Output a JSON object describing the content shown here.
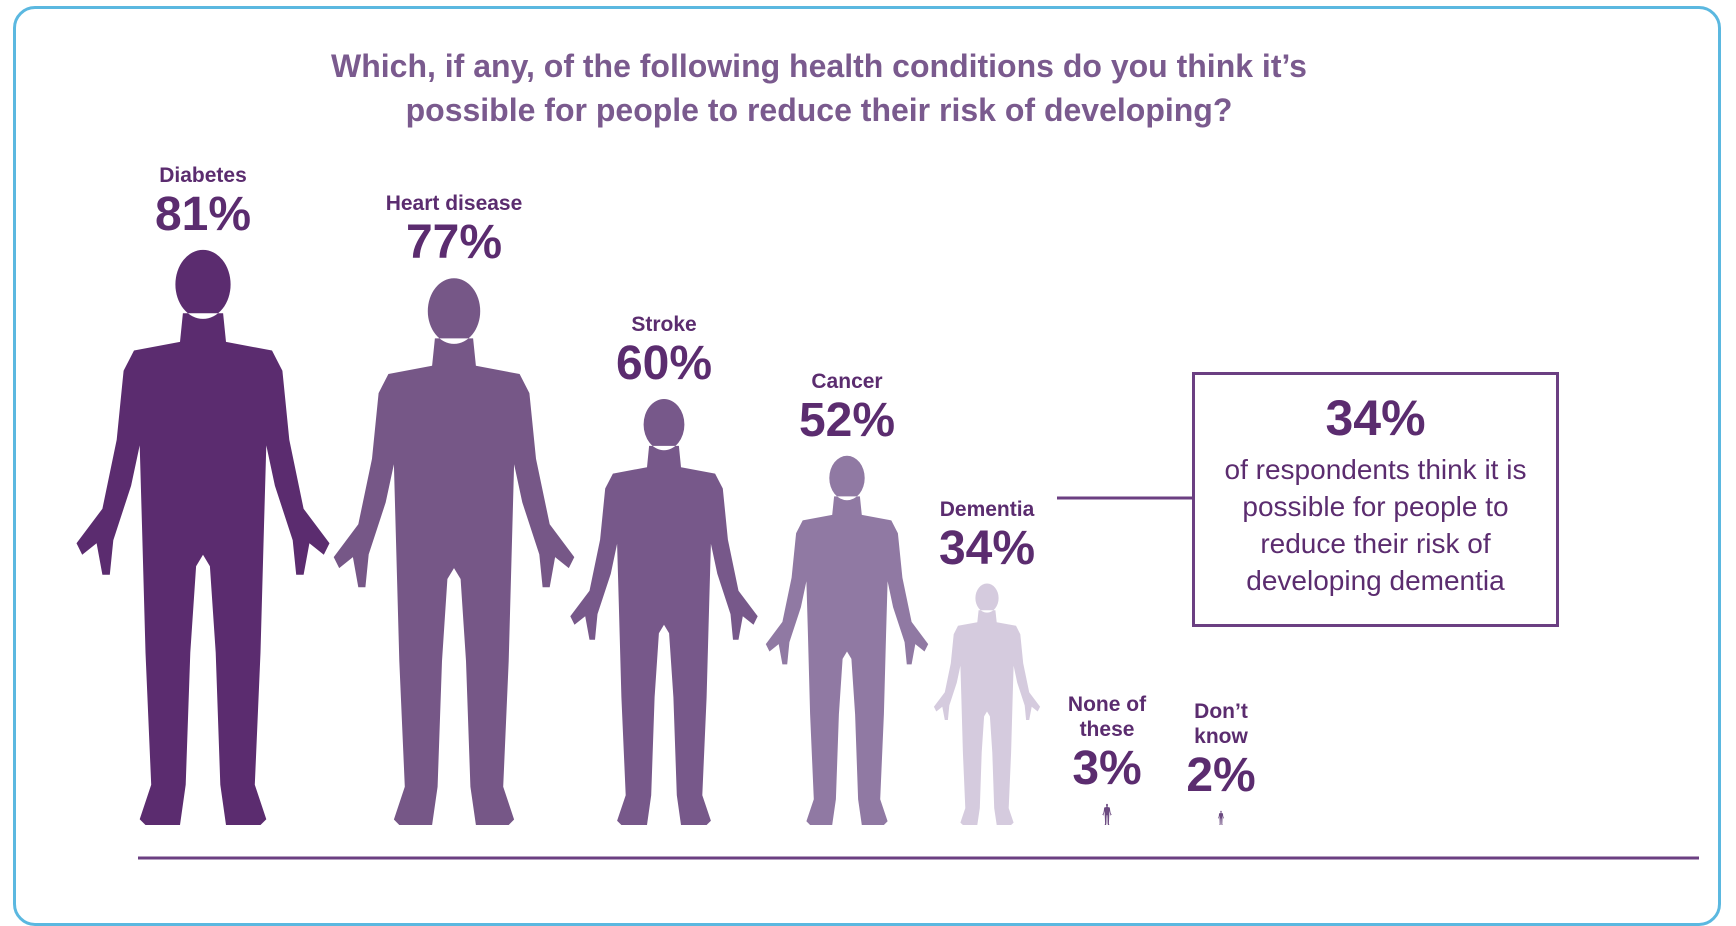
{
  "chart_data": {
    "type": "pictogram",
    "title": "Which, if any, of the following health conditions do you think it’s possible for people to reduce their risk of developing?",
    "categories": [
      "Diabetes",
      "Heart disease",
      "Stroke",
      "Cancer",
      "Dementia",
      "None of these",
      "Don’t know"
    ],
    "values": [
      81,
      77,
      60,
      52,
      34,
      3,
      2
    ],
    "value_labels": [
      "81%",
      "77%",
      "60%",
      "52%",
      "34%",
      "3%",
      "2%"
    ],
    "colors": [
      "#5b2c6f",
      "#765787",
      "#77588a",
      "#9079a3",
      "#d5cbde",
      "#6b4a80",
      "#6b4a80"
    ],
    "annotation": {
      "title": "34%",
      "text": "of respondents think it is possible for people to reduce their risk of developing dementia"
    }
  }
}
